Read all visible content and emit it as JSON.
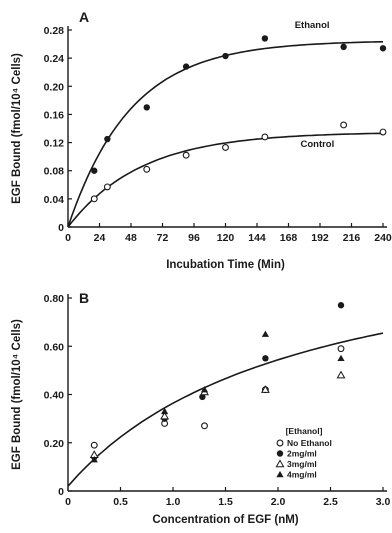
{
  "chart_data": [
    {
      "type": "scatter",
      "panel_label": "A",
      "xlabel": "Incubation Time (Min)",
      "ylabel": "EGF Bound (fmol/10⁴ Cells)",
      "xlim": [
        0,
        240
      ],
      "ylim": [
        0,
        0.28
      ],
      "xticks": [
        0,
        24,
        48,
        72,
        96,
        120,
        144,
        168,
        192,
        216,
        240
      ],
      "yticks": [
        0,
        0.04,
        0.08,
        0.12,
        0.16,
        0.2,
        0.24,
        0.28
      ],
      "xtick_labels": [
        "0",
        "24",
        "48",
        "72",
        "96",
        "120",
        "144",
        "168",
        "192",
        "216",
        "240"
      ],
      "ytick_labels": [
        "0",
        "0.04",
        "0.08",
        "0.12",
        "0.16",
        "0.20",
        "0.24",
        "0.28"
      ],
      "series": [
        {
          "name": "Ethanol",
          "marker": "filled-circle",
          "x": [
            20,
            30,
            60,
            90,
            120,
            150,
            210,
            240
          ],
          "y": [
            0.08,
            0.125,
            0.17,
            0.228,
            0.243,
            0.268,
            0.256,
            0.254
          ],
          "fit": {
            "plateau": 0.265,
            "rate": 0.021
          }
        },
        {
          "name": "Control",
          "marker": "open-circle",
          "x": [
            20,
            30,
            60,
            90,
            120,
            150,
            210,
            240
          ],
          "y": [
            0.04,
            0.057,
            0.082,
            0.102,
            0.113,
            0.128,
            0.145,
            0.135
          ],
          "fit": {
            "plateau": 0.135,
            "rate": 0.018
          }
        }
      ]
    },
    {
      "type": "scatter",
      "panel_label": "B",
      "xlabel": "Concentration of EGF (nM)",
      "ylabel": "EGF Bound (fmol/10⁴ Cells)",
      "xlim": [
        0,
        3.0
      ],
      "ylim": [
        0,
        0.8
      ],
      "xticks": [
        0,
        0.5,
        1.0,
        1.5,
        2.0,
        2.5,
        3.0
      ],
      "yticks": [
        0,
        0.2,
        0.4,
        0.6,
        0.8
      ],
      "xtick_labels": [
        "0",
        "0.5",
        "1.0",
        "1.5",
        "2.0",
        "2.5",
        "3.0"
      ],
      "ytick_labels": [
        "0",
        "0.20",
        "0.40",
        "0.60",
        "0.80"
      ],
      "legend_title": "[Ethanol]",
      "legend_position": "lower-right",
      "fit": {
        "bmax": 1.1,
        "kd": 2.2,
        "intercept": 0.02
      },
      "series": [
        {
          "name": "No Ethanol",
          "marker": "open-circle",
          "x": [
            0.25,
            0.92,
            1.3,
            1.88,
            2.6
          ],
          "y": [
            0.19,
            0.28,
            0.27,
            0.42,
            0.59
          ]
        },
        {
          "name": "2mg/ml",
          "marker": "filled-circle",
          "x": [
            0.25,
            0.92,
            1.28,
            1.88,
            2.6
          ],
          "y": [
            0.14,
            0.3,
            0.39,
            0.55,
            0.77
          ]
        },
        {
          "name": "3mg/ml",
          "marker": "open-triangle",
          "x": [
            0.25,
            0.92,
            1.3,
            1.88,
            2.6
          ],
          "y": [
            0.15,
            0.31,
            0.41,
            0.42,
            0.48
          ]
        },
        {
          "name": "4mg/ml",
          "marker": "filled-triangle",
          "x": [
            0.25,
            0.92,
            1.3,
            1.88,
            2.6
          ],
          "y": [
            0.13,
            0.33,
            0.42,
            0.65,
            0.55
          ]
        }
      ]
    }
  ]
}
